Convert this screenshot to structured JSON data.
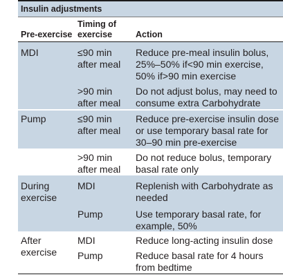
{
  "title": "Insulin adjustments",
  "headers": {
    "pre_exercise": "Pre-exercise",
    "timing_1": "Timing of",
    "timing_2": "exercise",
    "action": "Action"
  },
  "rows": [
    {
      "pre": [
        "MDI"
      ],
      "timing": [
        "≤90 min",
        "after meal"
      ],
      "action": [
        "Reduce pre-meal insulin bolus,",
        "25%–50% if<90 min exercise,",
        "50% if>90 min exercise"
      ]
    },
    {
      "pre": [],
      "timing": [
        ">90 min",
        "after meal"
      ],
      "action": [
        "Do not adjust bolus, may need to",
        "consume extra Carbohydrate"
      ]
    },
    {
      "pre": [
        "Pump"
      ],
      "timing": [
        "≤90 min",
        "after meal"
      ],
      "action": [
        "Reduce pre-exercise insulin dose",
        "or use temporary basal rate for",
        "30–90 min pre-exercise"
      ]
    },
    {
      "pre": [],
      "timing": [
        ">90 min",
        "after meal"
      ],
      "action": [
        "Do not reduce bolus, temporary",
        "basal rate only"
      ]
    },
    {
      "pre": [
        "During",
        "exercise"
      ],
      "timing": [
        "MDI"
      ],
      "action": [
        "Replenish with Carbohydrate as",
        "needed"
      ]
    },
    {
      "pre": [],
      "timing": [
        "Pump"
      ],
      "action": [
        "Use temporary basal rate, for",
        "example, 50%"
      ]
    },
    {
      "pre": [
        "After",
        "exercise"
      ],
      "timing": [
        "MDI"
      ],
      "action": [
        "Reduce long-acting insulin dose"
      ]
    },
    {
      "pre": [],
      "timing": [
        "Pump"
      ],
      "action": [
        "Reduce basal rate for 4 hours",
        "from bedtime"
      ]
    }
  ],
  "colors": {
    "band": "#c8d6e3",
    "text": "#231f20",
    "rule": "#1b1b1b"
  }
}
